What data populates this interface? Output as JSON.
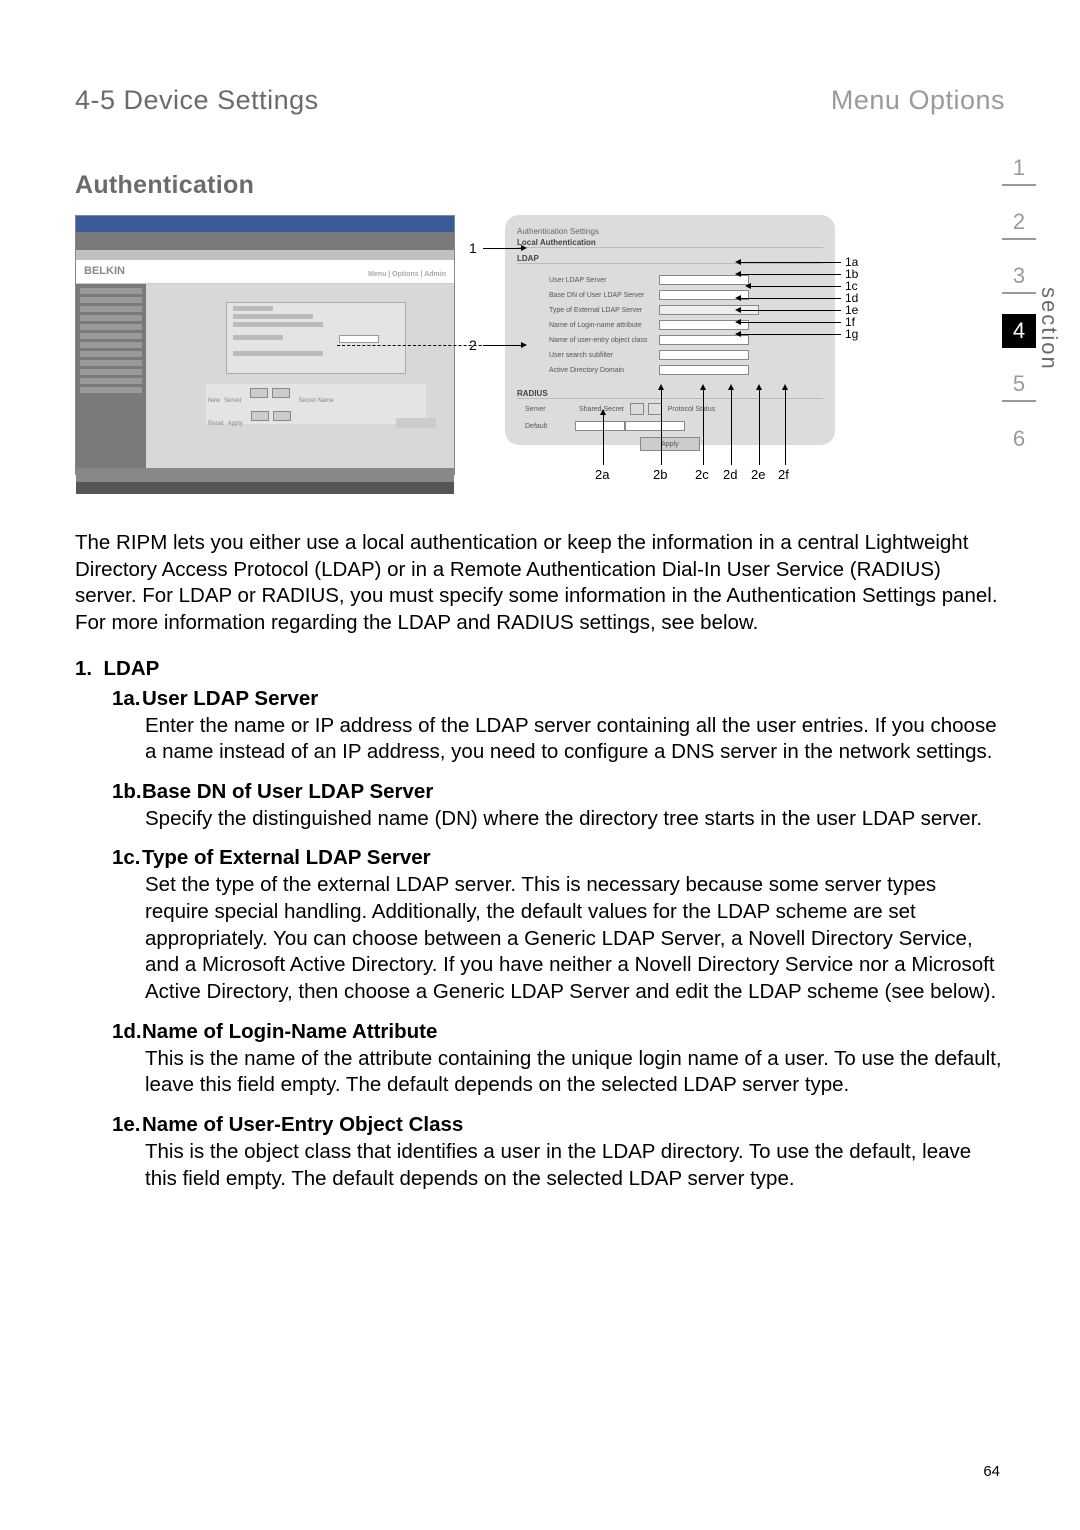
{
  "header": {
    "section_number": "4-5",
    "section_title": "Device Settings",
    "menu_label": "Menu Options"
  },
  "page_title": "Authentication",
  "figure": {
    "left_screenshot": {
      "brand": "BELKIN",
      "tabs_hint": "Menu  |  Options  |  Admin"
    },
    "right_panel": {
      "header": "Authentication Settings",
      "radio": "Local Authentication",
      "ldap_label": "LDAP",
      "fields": [
        "User LDAP Server",
        "Base DN of User LDAP Server",
        "Type of External LDAP Server",
        "Name of Login-name attribute",
        "Name of user-entry object class",
        "User search subfilter",
        "Active Directory Domain"
      ],
      "radius_label": "RADIUS",
      "radius_cols": [
        "Server",
        "Shared Secret",
        "Protocol Status"
      ],
      "radius_row": "Default",
      "apply_btn": "Apply"
    },
    "callout_1": "1",
    "callout_2": "2",
    "right_labels": [
      "1a",
      "1b",
      "1c",
      "1d",
      "1e",
      "1f",
      "1g"
    ],
    "bottom_labels": [
      "2a",
      "2b",
      "2c",
      "2d",
      "2e",
      "2f"
    ]
  },
  "intro": "The RIPM lets you either use a local authentication or keep the information in a central Lightweight Directory Access Protocol (LDAP) or in a Remote Authentication Dial-In User Service (RADIUS) server. For LDAP or RADIUS, you must specify some information in the Authentication Settings panel. For more information regarding the LDAP and RADIUS settings, see below.",
  "list_heading": {
    "num": "1.",
    "label": "LDAP"
  },
  "items": [
    {
      "marker": "1a.",
      "title": "User LDAP Server",
      "desc": "Enter the name or IP address of the LDAP server containing all the user entries. If you choose a name instead of an IP address, you need to configure a DNS server in the network settings."
    },
    {
      "marker": "1b.",
      "title": "Base DN of User LDAP Server",
      "desc": "Specify the distinguished name (DN) where the directory tree starts in the user LDAP server."
    },
    {
      "marker": "1c.",
      "title": "Type of External LDAP Server",
      "desc": "Set the type of the external LDAP server. This is necessary because some server types require special handling. Additionally, the default values for the LDAP scheme are set appropriately. You can choose between a Generic LDAP Server, a Novell Directory Service, and a Microsoft Active Directory. If you have neither a Novell Directory Service nor a Microsoft Active Directory, then choose a Generic LDAP Server and edit the LDAP scheme (see below)."
    },
    {
      "marker": "1d.",
      "title": "Name of Login-Name Attribute",
      "desc": "This is the name of the attribute containing the unique login name of a user. To use the default, leave this field empty. The default depends on the selected LDAP server type."
    },
    {
      "marker": "1e.",
      "title": "Name of User-Entry Object Class",
      "desc": "This is the object class that identifies a user in the LDAP directory. To use the default, leave this field empty. The default depends on the selected LDAP server type."
    }
  ],
  "nav": {
    "items": [
      "1",
      "2",
      "3",
      "4",
      "5",
      "6"
    ],
    "active_index": 3,
    "label": "section"
  },
  "page_number": "64"
}
